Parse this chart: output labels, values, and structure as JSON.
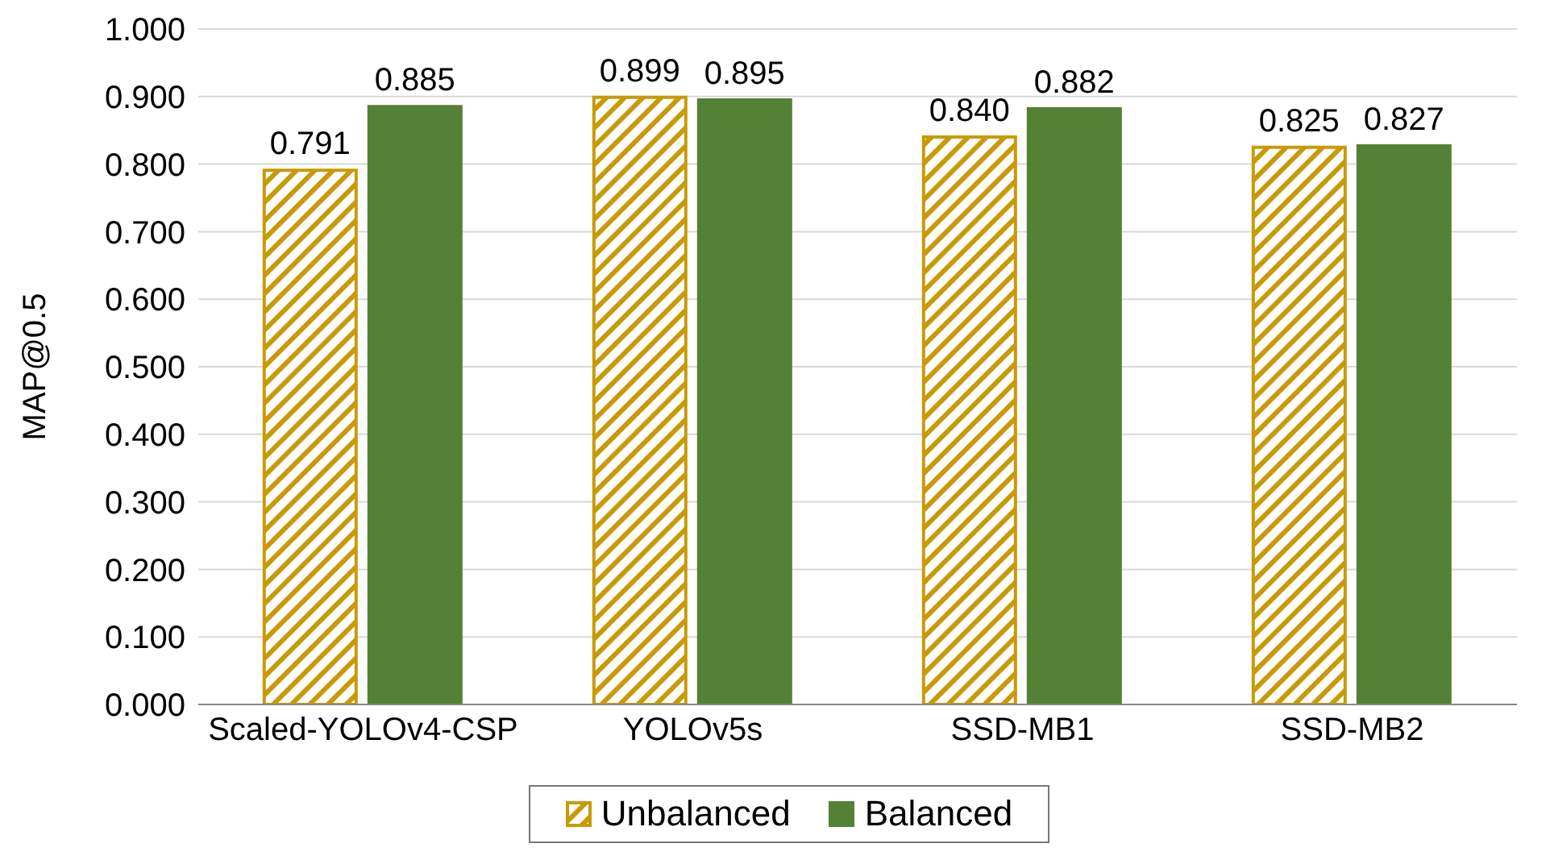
{
  "chart_data": {
    "type": "bar",
    "ylabel": "MAP@0.5",
    "categories": [
      "Scaled-YOLOv4-CSP",
      "YOLOv5s",
      "SSD-MB1",
      "SSD-MB2"
    ],
    "series": [
      {
        "name": "Unbalanced",
        "color": "#c99a06",
        "values": [
          0.791,
          0.899,
          0.84,
          0.825
        ],
        "value_labels": [
          "0.791",
          "0.899",
          "0.840",
          "0.825"
        ]
      },
      {
        "name": "Balanced",
        "color": "#538135",
        "values": [
          0.885,
          0.895,
          0.882,
          0.827
        ],
        "value_labels": [
          "0.885",
          "0.895",
          "0.882",
          "0.827"
        ]
      }
    ],
    "ylim": [
      0,
      1
    ],
    "yticks": [
      {
        "value": 0,
        "label": "0.000"
      },
      {
        "value": 0.1,
        "label": "0.100"
      },
      {
        "value": 0.2,
        "label": "0.200"
      },
      {
        "value": 0.3,
        "label": "0.300"
      },
      {
        "value": 0.4,
        "label": "0.400"
      },
      {
        "value": 0.5,
        "label": "0.500"
      },
      {
        "value": 0.6,
        "label": "0.600"
      },
      {
        "value": 0.7,
        "label": "0.700"
      },
      {
        "value": 0.8,
        "label": "0.800"
      },
      {
        "value": 0.9,
        "label": "0.900"
      },
      {
        "value": 1,
        "label": "1.000"
      }
    ],
    "grid": "y",
    "legend": "bottom"
  }
}
